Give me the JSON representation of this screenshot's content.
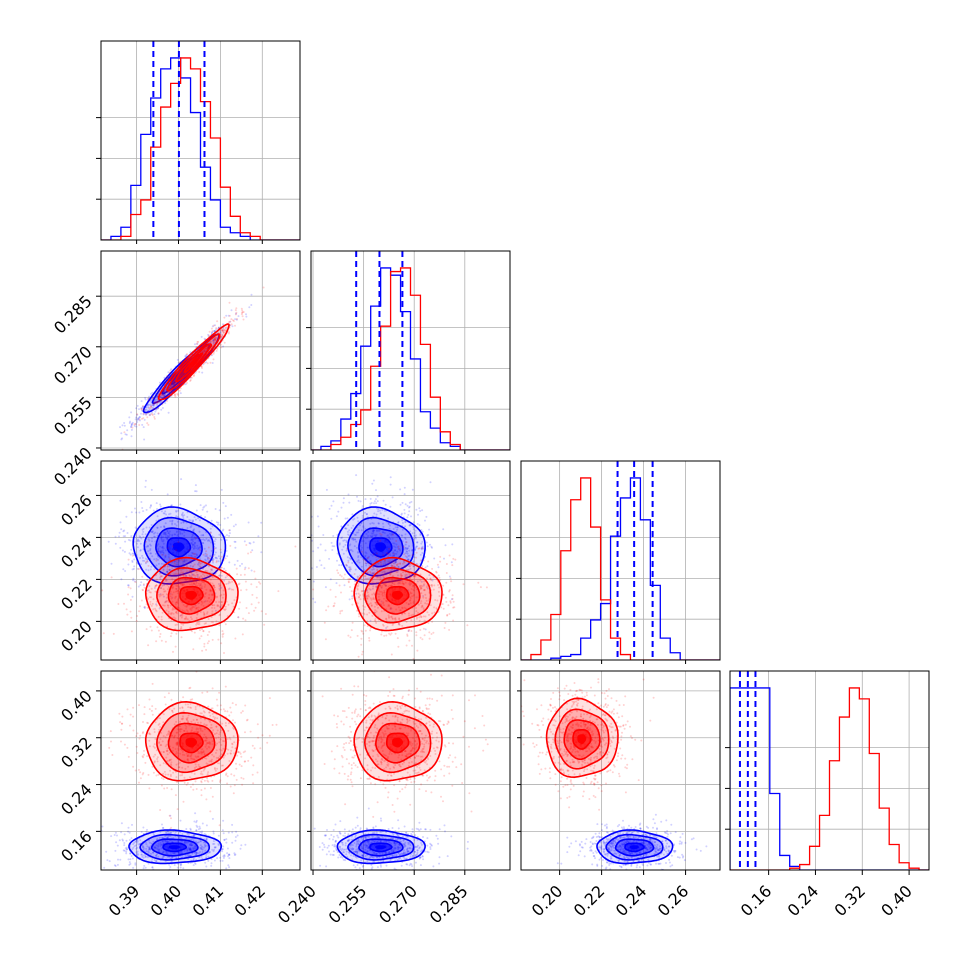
{
  "chart_data": {
    "type": "corner",
    "parameters": 4,
    "grid": true,
    "series": [
      {
        "key": "blue",
        "color": "#0000ff"
      },
      {
        "key": "red",
        "color": "#ff0000"
      }
    ],
    "axes": {
      "p0": {
        "range": [
          0.3815,
          0.429
        ],
        "ticks": [
          0.39,
          0.4,
          0.41,
          0.42
        ],
        "tick_labels": [
          "0.39",
          "0.40",
          "0.41",
          "0.42"
        ]
      },
      "p1": {
        "range": [
          0.2394,
          0.2984
        ],
        "ticks": [
          0.24,
          0.255,
          0.27,
          0.285
        ],
        "tick_labels": [
          "0.240",
          "0.255",
          "0.270",
          "0.285"
        ]
      },
      "p2": {
        "range": [
          0.1816,
          0.2764
        ],
        "ticks": [
          0.2,
          0.22,
          0.24,
          0.26
        ],
        "tick_labels": [
          "0.20",
          "0.22",
          "0.24",
          "0.26"
        ]
      },
      "p3": {
        "range": [
          0.094,
          0.434
        ],
        "ticks": [
          0.16,
          0.24,
          0.32,
          0.4
        ],
        "tick_labels": [
          "0.16",
          "0.24",
          "0.32",
          "0.40"
        ]
      }
    },
    "histograms": [
      {
        "param": "p0",
        "edges": [
          0.3815,
          0.429
        ],
        "bins": 20,
        "blue": [
          0,
          2,
          7,
          30,
          58,
          78,
          94,
          100,
          89,
          70,
          40,
          22,
          7,
          4,
          2,
          0,
          0,
          0,
          0,
          0
        ],
        "red": [
          0,
          0,
          2,
          14,
          22,
          51,
          73,
          86,
          100,
          94,
          76,
          56,
          29,
          13,
          4,
          2,
          0,
          0,
          0,
          0
        ],
        "quantiles": [
          0.394,
          0.4001,
          0.4062
        ]
      },
      {
        "param": "p1",
        "edges": [
          0.2394,
          0.2984
        ],
        "bins": 20,
        "blue": [
          0,
          2,
          5,
          17,
          31,
          57,
          79,
          100,
          96,
          76,
          50,
          21,
          12,
          4,
          2,
          0,
          0,
          0,
          0,
          0
        ],
        "red": [
          0,
          0,
          3,
          7,
          14,
          22,
          46,
          68,
          98,
          100,
          85,
          58,
          29,
          10,
          3,
          0,
          0,
          0,
          0,
          0
        ],
        "quantiles": [
          0.2528,
          0.2597,
          0.2665
        ]
      },
      {
        "param": "p2",
        "edges": [
          0.1816,
          0.2764
        ],
        "bins": 20,
        "blue": [
          0,
          0,
          0,
          1,
          2,
          3,
          12,
          22,
          31,
          68,
          89,
          100,
          77,
          41,
          12,
          4,
          0,
          0,
          0,
          0
        ],
        "red": [
          0,
          3,
          11,
          25,
          60,
          88,
          100,
          73,
          33,
          12,
          3,
          0,
          0,
          0,
          0,
          0,
          0,
          0,
          0,
          0
        ],
        "quantiles": [
          0.2276,
          0.2355,
          0.2443
        ]
      },
      {
        "param": "p3",
        "edges": [
          0.094,
          0.434
        ],
        "bins": 20,
        "blue": [
          100,
          100,
          100,
          100,
          42,
          8,
          2,
          0,
          0,
          0,
          0,
          0,
          0,
          0,
          0,
          0,
          0,
          0,
          0,
          0
        ],
        "red": [
          0,
          0,
          0,
          0,
          0,
          0,
          1,
          3,
          13,
          30,
          60,
          84,
          100,
          94,
          64,
          34,
          14,
          4,
          1,
          0
        ],
        "quantiles": [
          0.111,
          0.1245,
          0.1375
        ]
      }
    ],
    "contours": [
      {
        "x": "p0",
        "y": "p1",
        "blue": {
          "mean": [
            0.4005,
            0.2618
          ],
          "sd": [
            0.0045,
            0.0058
          ],
          "rho": 0.96
        },
        "red": {
          "mean": [
            0.4035,
            0.2652
          ],
          "sd": [
            0.0042,
            0.0056
          ],
          "rho": 0.96
        }
      },
      {
        "x": "p0",
        "y": "p2",
        "blue": {
          "mean": [
            0.4,
            0.2355
          ],
          "sd": [
            0.0055,
            0.009
          ],
          "rho": -0.05
        },
        "red": {
          "mean": [
            0.403,
            0.2125
          ],
          "sd": [
            0.0055,
            0.0085
          ],
          "rho": 0.0
        }
      },
      {
        "x": "p1",
        "y": "p2",
        "blue": {
          "mean": [
            0.26,
            0.2355
          ],
          "sd": [
            0.0065,
            0.009
          ],
          "rho": -0.05
        },
        "red": {
          "mean": [
            0.265,
            0.2125
          ],
          "sd": [
            0.0065,
            0.0085
          ],
          "rho": 0.0
        }
      },
      {
        "x": "p0",
        "y": "p3",
        "blue": {
          "mean": [
            0.399,
            0.133
          ],
          "sd": [
            0.0055,
            0.014
          ],
          "rho": 0.0
        },
        "red": {
          "mean": [
            0.403,
            0.312
          ],
          "sd": [
            0.0055,
            0.033
          ],
          "rho": 0.0
        }
      },
      {
        "x": "p1",
        "y": "p3",
        "blue": {
          "mean": [
            0.26,
            0.133
          ],
          "sd": [
            0.0065,
            0.014
          ],
          "rho": 0.0
        },
        "red": {
          "mean": [
            0.265,
            0.312
          ],
          "sd": [
            0.0065,
            0.033
          ],
          "rho": 0.0
        }
      },
      {
        "x": "p2",
        "y": "p3",
        "blue": {
          "mean": [
            0.2355,
            0.133
          ],
          "sd": [
            0.009,
            0.014
          ],
          "rho": 0.0
        },
        "red": {
          "mean": [
            0.2105,
            0.318
          ],
          "sd": [
            0.0085,
            0.033
          ],
          "rho": 0.0
        }
      }
    ]
  }
}
